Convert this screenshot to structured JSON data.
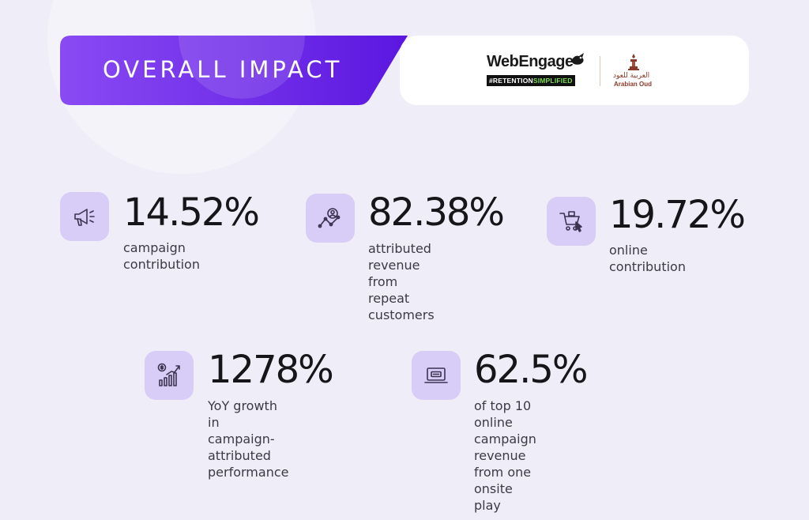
{
  "header": {
    "title": "OVERALL IMPACT"
  },
  "logos": {
    "webengage_wordmark": "WebEngage",
    "webengage_tagline_prefix": "#RETENTION",
    "webengage_tagline_suffix": "SIMPLIFIED",
    "arabian_oud_arabic": "العربية للعود",
    "arabian_oud_english": "Arabian Oud"
  },
  "stats": [
    {
      "icon": "megaphone-icon",
      "value": "14.52%",
      "description": "campaign contribution"
    },
    {
      "icon": "user-analytics-icon",
      "value": "82.38%",
      "description": "attributed revenue\nfrom repeat customers"
    },
    {
      "icon": "shopping-cart-icon",
      "value": "19.72%",
      "description": "online contribution"
    },
    {
      "icon": "growth-chart-icon",
      "value": "1278%",
      "description": "YoY growth in campaign-\nattributed performance"
    },
    {
      "icon": "laptop-icon",
      "value": "62.5%",
      "description": "of top 10 online campaign\nrevenue from one onsite play"
    }
  ],
  "colors": {
    "background": "#efedf7",
    "banner_gradient_start": "#8a4af3",
    "banner_gradient_end": "#5b17e0",
    "icon_tile": "#d8cdf6",
    "icon_stroke": "#3a3450",
    "arabian_oud_brand": "#8b3a2a",
    "webengage_accent": "#7ed957"
  }
}
